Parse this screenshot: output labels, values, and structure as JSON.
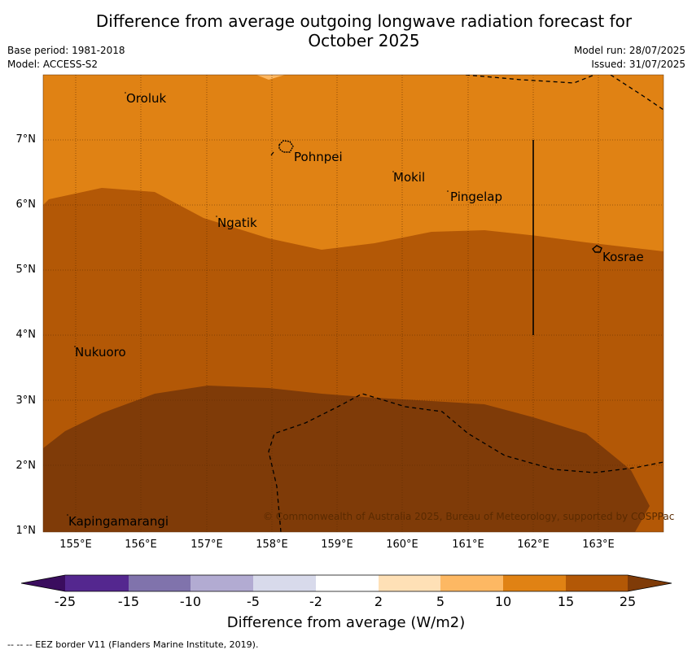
{
  "title_line1": "Difference from average outgoing longwave radiation forecast for",
  "title_line2": "October 2025",
  "base_period": "Base period: 1981-2018",
  "model": "Model: ACCESS-S2",
  "model_run": "Model run: 28/07/2025",
  "issued": "Issued: 31/07/2025",
  "lat_ticks": [
    "7°N",
    "6°N",
    "5°N",
    "4°N",
    "3°N",
    "2°N",
    "1°N"
  ],
  "lon_ticks": [
    "155°E",
    "156°E",
    "157°E",
    "158°E",
    "159°E",
    "160°E",
    "161°E",
    "162°E",
    "163°E"
  ],
  "places": {
    "oroluk": "Oroluk",
    "pohnpei": "Pohnpei",
    "mokil": "Mokil",
    "pingelap": "Pingelap",
    "ngatik": "Ngatik",
    "kosrae": "Kosrae",
    "nukuoro": "Nukuoro",
    "kapingamarangi": "Kapingamarangi"
  },
  "copyright": "© Commonwealth of Australia 2025, Bureau of Meteorology, supported by COSPPac",
  "colorbar": {
    "ticks": [
      "-25",
      "-15",
      "-10",
      "-5",
      "-2",
      "2",
      "5",
      "10",
      "15",
      "25"
    ],
    "colors": {
      "lt_minus25": "#3a0d5e",
      "m25_m15": "#54278f",
      "m15_m10": "#8073ac",
      "m10_m5": "#b2abd2",
      "m5_m2": "#d8daeb",
      "m2_2": "#ffffff",
      "p2_p5": "#fee0b6",
      "p5_p10": "#fdb863",
      "p10_p15": "#e08214",
      "p15_p25": "#b35806",
      "gt_p25": "#7f3b08"
    },
    "title": "Difference from average (W/m2)"
  },
  "footer": "--  --  -- EEZ border V11 (Flanders Marine Institute, 2019)."
}
